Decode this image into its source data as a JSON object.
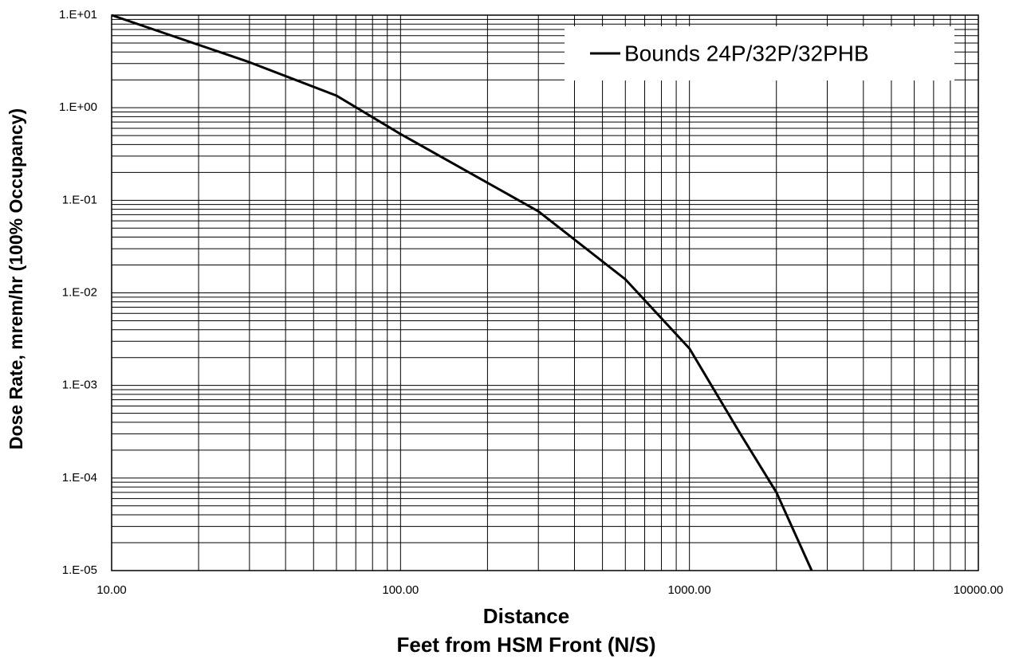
{
  "chart_data": {
    "type": "line",
    "xlabel": [
      "Distance",
      "Feet from HSM Front (N/S)"
    ],
    "ylabel": "Dose Rate, mrem/hr  (100% Occupancy)",
    "xscale": "log",
    "yscale": "log",
    "grid": true,
    "legend": "upper right",
    "xlim": [
      10,
      10000
    ],
    "xticks": [
      {
        "value": 10,
        "label": "10.00"
      },
      {
        "value": 100,
        "label": "100.00"
      },
      {
        "value": 1000,
        "label": "1000.00"
      },
      {
        "value": 10000,
        "label": "10000.00"
      }
    ],
    "ylim": [
      1e-05,
      10
    ],
    "yticks": [
      {
        "value": 10,
        "label": "1.E+01"
      },
      {
        "value": 1,
        "label": "1.E+00"
      },
      {
        "value": 0.1,
        "label": "1.E-01"
      },
      {
        "value": 0.01,
        "label": "1.E-02"
      },
      {
        "value": 0.001,
        "label": "1.E-03"
      },
      {
        "value": 0.0001,
        "label": "1.E-04"
      },
      {
        "value": 1e-05,
        "label": "1.E-05"
      }
    ],
    "series": [
      {
        "name": "Bounds 24P/32P/32PHB",
        "color": "#000000",
        "x": [
          10,
          30,
          60,
          100,
          300,
          600,
          1000,
          1500,
          2000,
          2650
        ],
        "values": [
          10,
          3.1,
          1.35,
          0.52,
          0.076,
          0.014,
          0.0025,
          0.0003,
          7e-05,
          1e-05
        ]
      }
    ]
  }
}
